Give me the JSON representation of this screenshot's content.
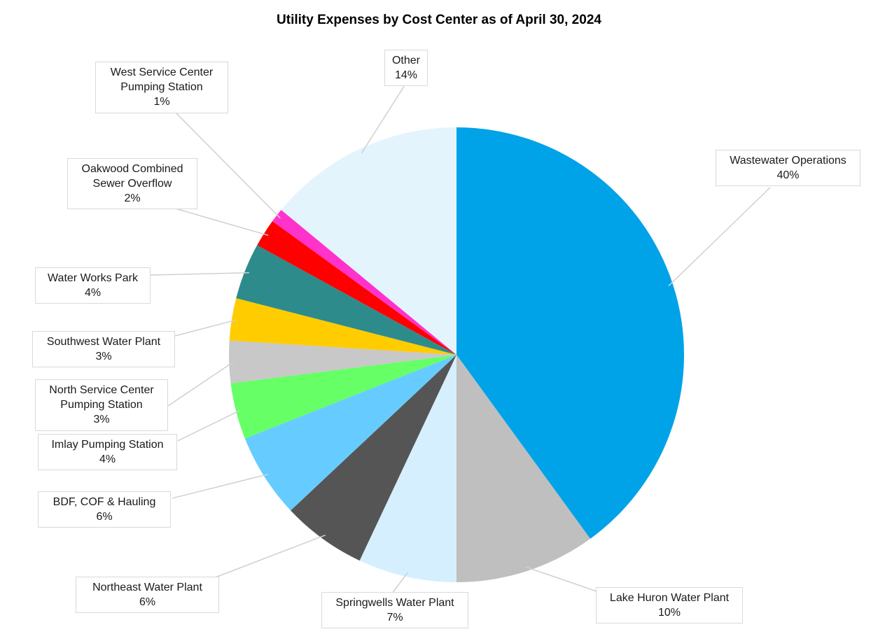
{
  "chart_data": {
    "type": "pie",
    "title": "Utility Expenses by Cost Center as of April 30, 2024",
    "slices": [
      {
        "label_lines": [
          "Wastewater Operations"
        ],
        "pct_label": "40%",
        "value": 40,
        "color": "#00a2e8"
      },
      {
        "label_lines": [
          "Lake Huron Water Plant"
        ],
        "pct_label": "10%",
        "value": 10,
        "color": "#bfbfbf"
      },
      {
        "label_lines": [
          "Springwells Water Plant"
        ],
        "pct_label": "7%",
        "value": 7,
        "color": "#d6efff"
      },
      {
        "label_lines": [
          "Northeast Water Plant"
        ],
        "pct_label": "6%",
        "value": 6,
        "color": "#555555"
      },
      {
        "label_lines": [
          "BDF, COF & Hauling"
        ],
        "pct_label": "6%",
        "value": 6,
        "color": "#66ccff"
      },
      {
        "label_lines": [
          "Imlay Pumping Station"
        ],
        "pct_label": "4%",
        "value": 4,
        "color": "#66ff66"
      },
      {
        "label_lines": [
          "North Service Center",
          "Pumping Station"
        ],
        "pct_label": "3%",
        "value": 3,
        "color": "#c8c8c8"
      },
      {
        "label_lines": [
          "Southwest Water Plant"
        ],
        "pct_label": "3%",
        "value": 3,
        "color": "#ffcc00"
      },
      {
        "label_lines": [
          "Water Works Park"
        ],
        "pct_label": "4%",
        "value": 4,
        "color": "#2e8b8b"
      },
      {
        "label_lines": [
          "Oakwood Combined",
          "Sewer Overflow"
        ],
        "pct_label": "2%",
        "value": 2,
        "color": "#ff0000"
      },
      {
        "label_lines": [
          "West Service Center",
          "Pumping Station"
        ],
        "pct_label": "1%",
        "value": 1,
        "color": "#ff33cc"
      },
      {
        "label_lines": [
          "Other"
        ],
        "pct_label": "14%",
        "value": 14,
        "color": "#e3f4fd"
      }
    ],
    "start_angle": "12 o'clock",
    "direction": "clockwise",
    "legend": "none"
  }
}
